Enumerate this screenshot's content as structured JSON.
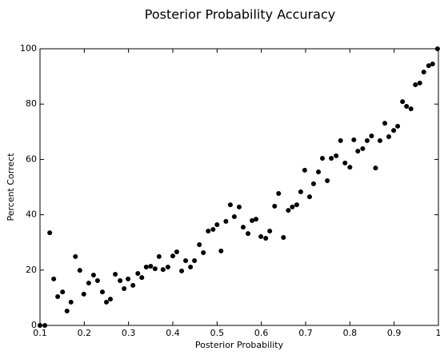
{
  "chart_data": {
    "type": "scatter",
    "title": "Posterior Probability Accuracy",
    "x_label": "Posterior Probability",
    "y_label": "Percent Correct",
    "x": [
      0.1,
      0.111,
      0.122,
      0.131,
      0.14,
      0.151,
      0.161,
      0.17,
      0.18,
      0.19,
      0.199,
      0.21,
      0.221,
      0.23,
      0.241,
      0.25,
      0.259,
      0.27,
      0.281,
      0.29,
      0.299,
      0.31,
      0.321,
      0.33,
      0.34,
      0.35,
      0.36,
      0.369,
      0.378,
      0.389,
      0.4,
      0.409,
      0.42,
      0.429,
      0.44,
      0.449,
      0.46,
      0.469,
      0.48,
      0.491,
      0.5,
      0.509,
      0.52,
      0.53,
      0.539,
      0.55,
      0.559,
      0.57,
      0.579,
      0.588,
      0.599,
      0.61,
      0.619,
      0.63,
      0.639,
      0.65,
      0.661,
      0.67,
      0.68,
      0.689,
      0.698,
      0.709,
      0.718,
      0.729,
      0.738,
      0.749,
      0.758,
      0.769,
      0.779,
      0.789,
      0.8,
      0.809,
      0.818,
      0.829,
      0.839,
      0.849,
      0.858,
      0.868,
      0.879,
      0.888,
      0.899,
      0.908,
      0.919,
      0.928,
      0.938,
      0.948,
      0.958,
      0.967,
      0.978,
      0.987,
      0.998
    ],
    "values": [
      0,
      0,
      33.5,
      16.8,
      10.4,
      12.1,
      5.2,
      8.4,
      24.9,
      19.9,
      11.3,
      15.3,
      18.2,
      16.2,
      12.1,
      8.4,
      9.5,
      18.5,
      16.2,
      13.3,
      16.8,
      14.5,
      18.8,
      17.3,
      21.1,
      21.4,
      20.5,
      24.9,
      20.2,
      21.1,
      25.1,
      26.6,
      19.7,
      23.4,
      21.1,
      23.4,
      29.2,
      26.3,
      34.1,
      34.7,
      36.4,
      26.9,
      37.6,
      43.6,
      39.3,
      42.8,
      35.5,
      33.2,
      37.9,
      38.4,
      32.1,
      31.5,
      34.1,
      43.1,
      47.7,
      31.8,
      41.6,
      42.8,
      43.6,
      48.3,
      56.1,
      46.5,
      51.2,
      55.5,
      60.4,
      52.3,
      60.4,
      61.3,
      66.8,
      58.7,
      57.2,
      67.1,
      63,
      63.9,
      66.8,
      68.5,
      56.9,
      66.8,
      73.1,
      68.2,
      70.5,
      72,
      80.9,
      79.2,
      78.3,
      87,
      87.6,
      91.6,
      93.9,
      94.5,
      100
    ],
    "color": "#000000",
    "xlim": [
      0.1,
      1
    ],
    "xticks": [
      0.1,
      0.2,
      0.3,
      0.4,
      0.5,
      0.6,
      0.7,
      0.8,
      0.9,
      1
    ],
    "ylim": [
      0,
      100
    ],
    "yticks": [
      0,
      20,
      40,
      60,
      80,
      100
    ],
    "grid": false
  }
}
